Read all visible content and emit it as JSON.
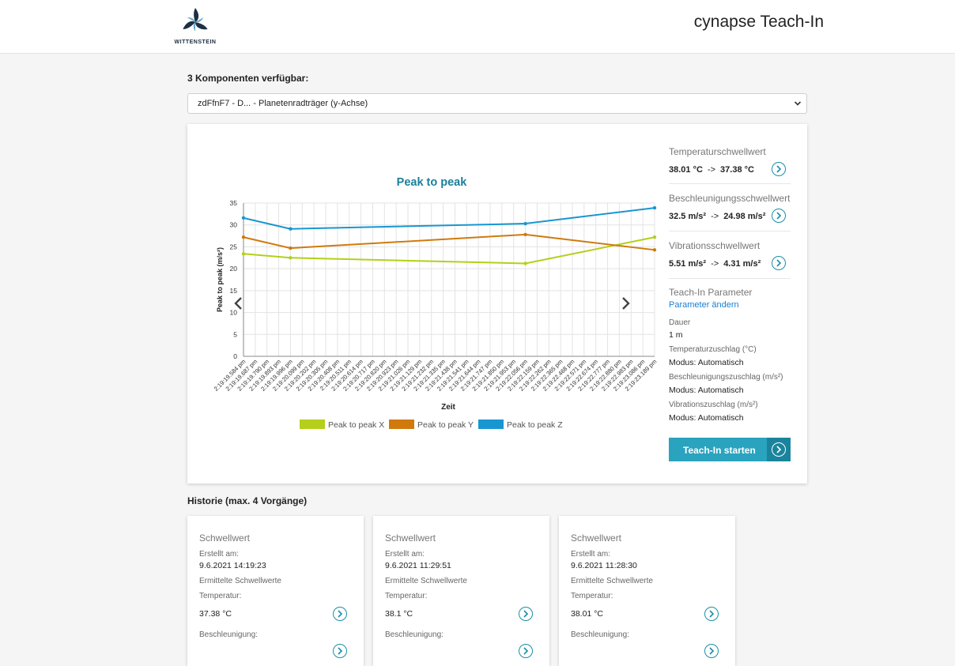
{
  "header": {
    "logo_text": "WITTENSTEIN",
    "app_title": "cynapse Teach-In"
  },
  "components": {
    "label": "3 Komponenten verfügbar:",
    "selected": "zdFfnF7 - D... - Planetenradträger (y-Achse)"
  },
  "chart_data": {
    "type": "line",
    "title": "Peak to peak",
    "xlabel": "Zeit",
    "ylabel": "Peak to peak (m/s²)",
    "ylim": [
      0,
      35
    ],
    "yticks": [
      0,
      5,
      10,
      15,
      20,
      25,
      30,
      35
    ],
    "grid": true,
    "legend_position": "bottom",
    "x": [
      "2:19:19.584 pm",
      "2:19:19.687 pm",
      "2:19:19.790 pm",
      "2:19:19.893 pm",
      "2:19:19.996 pm",
      "2:19:20.099 pm",
      "2:19:20.202 pm",
      "2:19:20.305 pm",
      "2:19:20.408 pm",
      "2:19:20.511 pm",
      "2:19:20.614 pm",
      "2:19:20.717 pm",
      "2:19:20.820 pm",
      "2:19:20.923 pm",
      "2:19:21.026 pm",
      "2:19:21.129 pm",
      "2:19:21.232 pm",
      "2:19:21.335 pm",
      "2:19:21.438 pm",
      "2:19:21.541 pm",
      "2:19:21.644 pm",
      "2:19:21.747 pm",
      "2:19:21.850 pm",
      "2:19:21.953 pm",
      "2:19:22.056 pm",
      "2:19:22.159 pm",
      "2:19:22.262 pm",
      "2:19:22.365 pm",
      "2:19:22.468 pm",
      "2:19:22.571 pm",
      "2:19:22.674 pm",
      "2:19:22.777 pm",
      "2:19:22.880 pm",
      "2:19:22.983 pm",
      "2:19:23.086 pm",
      "2:19:23.189 pm"
    ],
    "series": [
      {
        "name": "Peak to peak X",
        "color": "#b5cf1a",
        "points": [
          [
            0,
            23.4
          ],
          [
            4,
            22.5
          ],
          [
            24,
            21.2
          ],
          [
            35,
            27.2
          ]
        ]
      },
      {
        "name": "Peak to peak Y",
        "color": "#d07a0e",
        "points": [
          [
            0,
            27.2
          ],
          [
            4,
            24.7
          ],
          [
            24,
            27.8
          ],
          [
            35,
            24.3
          ]
        ]
      },
      {
        "name": "Peak to peak Z",
        "color": "#1896d1",
        "points": [
          [
            0,
            31.6
          ],
          [
            4,
            29.1
          ],
          [
            24,
            30.3
          ],
          [
            35,
            33.9
          ]
        ]
      }
    ]
  },
  "thresholds": [
    {
      "title": "Temperaturschwellwert",
      "from": "38.01 °C",
      "arrow": "->",
      "to": "37.38 °C"
    },
    {
      "title": "Beschleunigungsschwellwert",
      "from": "32.5 m/s²",
      "arrow": "->",
      "to": "24.98 m/s²"
    },
    {
      "title": "Vibrationsschwellwert",
      "from": "5.51 m/s²",
      "arrow": "->",
      "to": "4.31 m/s²"
    }
  ],
  "teach_in": {
    "title": "Teach-In Parameter",
    "change_link": "Parameter ändern",
    "duration_label": "Dauer",
    "duration_value": "1 m",
    "temp_label": "Temperaturzuschlag (°C)",
    "temp_value": "Modus: Automatisch",
    "accel_label": "Beschleunigungszuschlag (m/s²)",
    "accel_value": "Modus: Automatisch",
    "vib_label": "Vibrationszuschlag (m/s²)",
    "vib_value": "Modus: Automatisch",
    "start_button": "Teach-In starten"
  },
  "history": {
    "label": "Historie (max. 4 Vorgänge)",
    "cards": [
      {
        "title": "Schwellwert",
        "created_label": "Erstellt am:",
        "created_value": "9.6.2021 14:19:23",
        "determined_label": "Ermittelte Schwellwerte",
        "temp_label": "Temperatur:",
        "temp_value": "37.38 °C",
        "accel_label": "Beschleunigung:"
      },
      {
        "title": "Schwellwert",
        "created_label": "Erstellt am:",
        "created_value": "9.6.2021 11:29:51",
        "determined_label": "Ermittelte Schwellwerte",
        "temp_label": "Temperatur:",
        "temp_value": "38.1 °C",
        "accel_label": "Beschleunigung:"
      },
      {
        "title": "Schwellwert",
        "created_label": "Erstellt am:",
        "created_value": "9.6.2021 11:28:30",
        "determined_label": "Ermittelte Schwellwerte",
        "temp_label": "Temperatur:",
        "temp_value": "38.01 °C",
        "accel_label": "Beschleunigung:"
      }
    ]
  },
  "icons": {
    "nav_prev": "chevron-left-icon",
    "nav_next": "chevron-right-icon",
    "circle_arrow": "chevron-right-circle-icon",
    "select_arrow": "chevron-down-icon"
  }
}
